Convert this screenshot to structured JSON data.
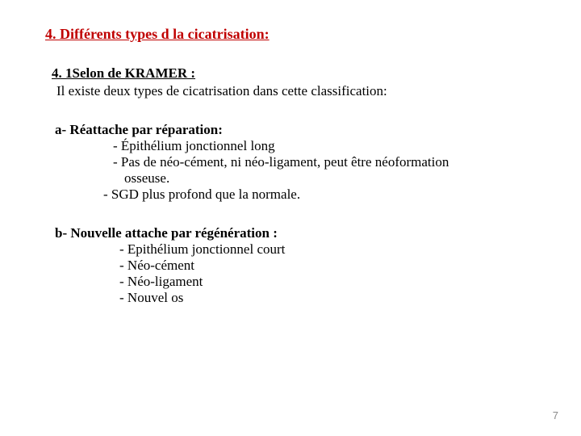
{
  "colors": {
    "title": "#c00000",
    "body": "#000000",
    "page_num": "#8a8a8a",
    "background": "#ffffff"
  },
  "fontsize": {
    "title": 18,
    "body": 17,
    "page_num": 13
  },
  "title": "4. Différents types d la cicatrisation:",
  "sub1": "4. 1Selon de KRAMER :",
  "intro": "Il existe  deux types de cicatrisation dans cette classification:",
  "a": {
    "heading": "a- Réattache par réparation:",
    "items": {
      "i1": "- Épithélium jonctionnel long",
      "i2": "- Pas de néo-cément, ni néo-ligament, peut être néoformation",
      "i2b": "osseuse.",
      "i3": "- SGD plus profond que la normale."
    }
  },
  "b": {
    "heading": "b- Nouvelle attache par régénération :",
    "items": {
      "i1": "- Epithélium jonctionnel court",
      "i2": "- Néo-cément",
      "i3": "- Néo-ligament",
      "i4": "- Nouvel os"
    }
  },
  "page_num": "7"
}
